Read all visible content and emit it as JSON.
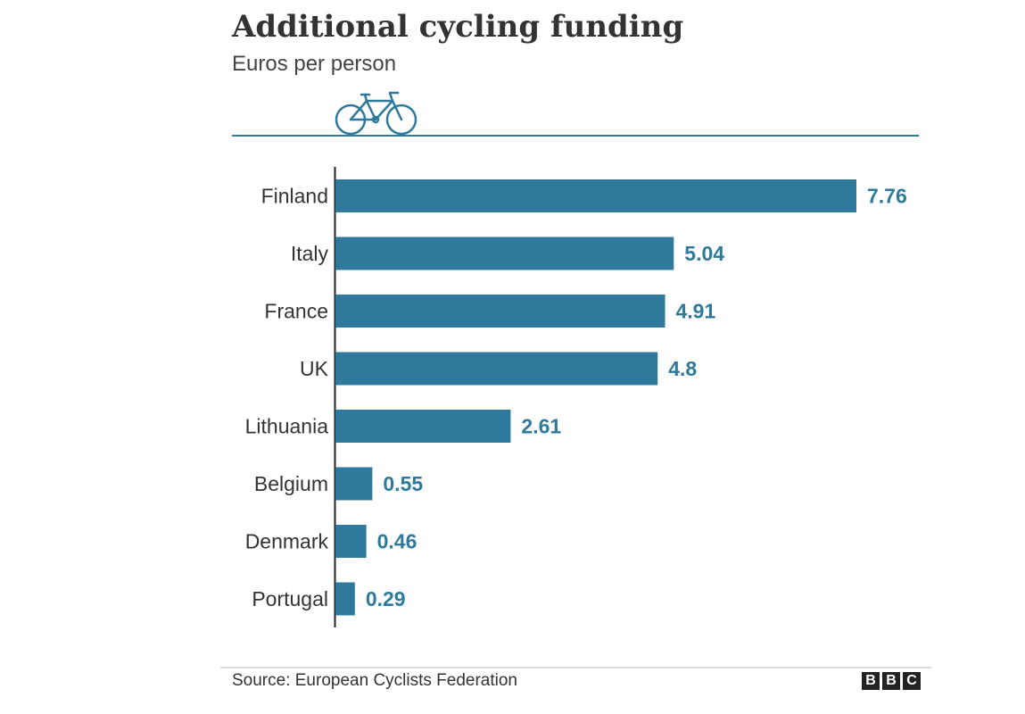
{
  "chart_data": {
    "type": "bar",
    "orientation": "horizontal",
    "title": "Additional cycling funding",
    "subtitle": "Euros per person",
    "categories": [
      "Finland",
      "Italy",
      "France",
      "UK",
      "Lithuania",
      "Belgium",
      "Denmark",
      "Portugal"
    ],
    "values": [
      7.76,
      5.04,
      4.91,
      4.8,
      2.61,
      0.55,
      0.46,
      0.29
    ],
    "value_labels": [
      "7.76",
      "5.04",
      "4.91",
      "4.8",
      "2.61",
      "0.55",
      "0.46",
      "0.29"
    ],
    "xlim": [
      0,
      7.76
    ],
    "grid": false,
    "bar_color": "#2f7a9c",
    "label_color": "#2f7a9c",
    "source": "Source: European Cyclists Federation"
  },
  "branding": {
    "logo_letters": [
      "B",
      "B",
      "C"
    ],
    "icon": "bicycle-icon",
    "accent_color": "#2f7a9c"
  }
}
